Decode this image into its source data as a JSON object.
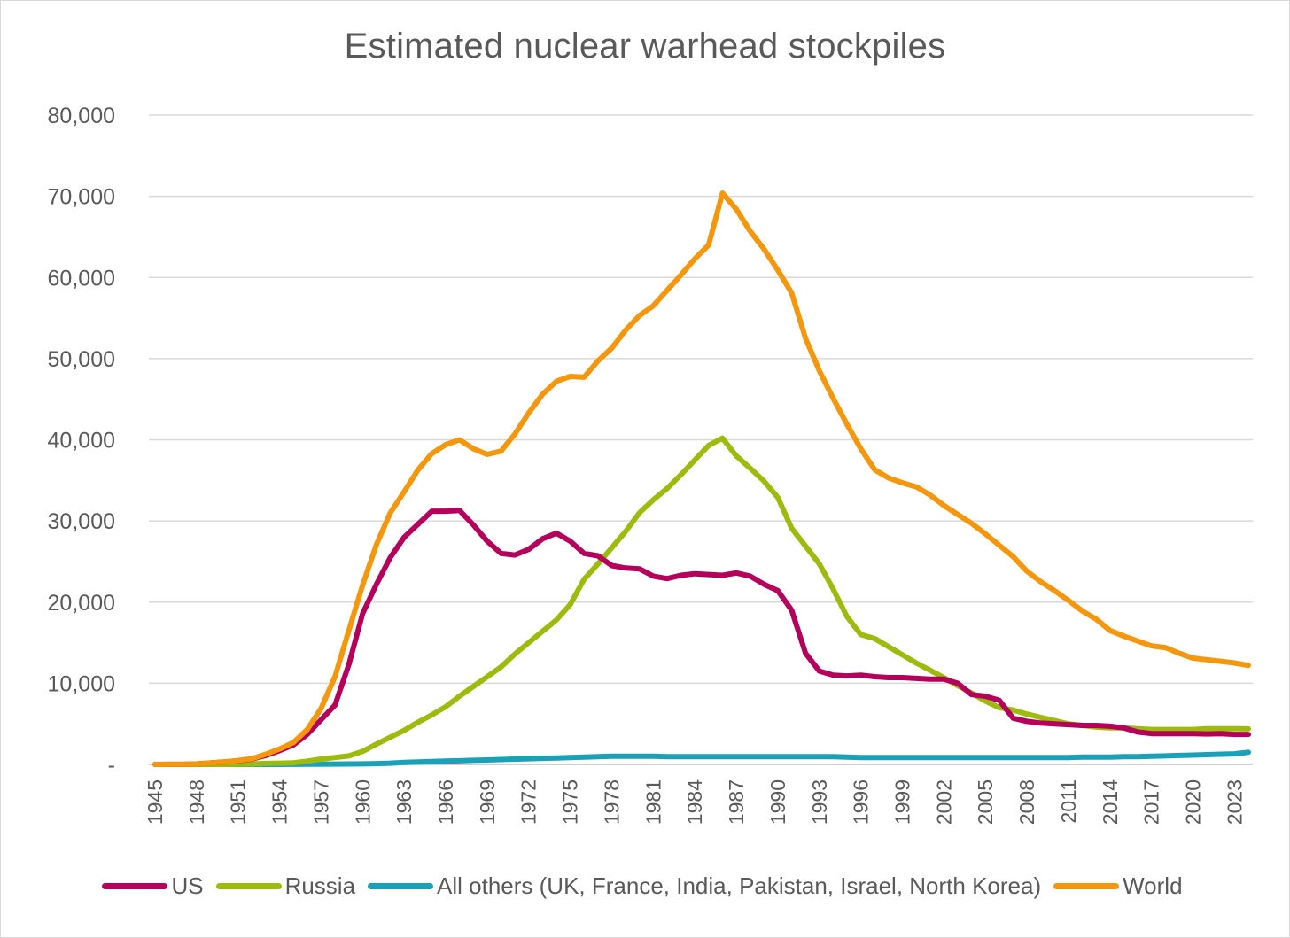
{
  "chart_data": {
    "type": "line",
    "title": "Estimated nuclear warhead stockpiles",
    "xlabel": "",
    "ylabel": "",
    "ylim": [
      0,
      80000
    ],
    "y_ticks": [
      {
        "value": 0,
        "label": "-"
      },
      {
        "value": 10000,
        "label": "10,000"
      },
      {
        "value": 20000,
        "label": "20,000"
      },
      {
        "value": 30000,
        "label": "30,000"
      },
      {
        "value": 40000,
        "label": "40,000"
      },
      {
        "value": 50000,
        "label": "50,000"
      },
      {
        "value": 60000,
        "label": "60,000"
      },
      {
        "value": 70000,
        "label": "70,000"
      },
      {
        "value": 80000,
        "label": "80,000"
      }
    ],
    "x_tick_labels": [
      "1945",
      "1948",
      "1951",
      "1954",
      "1957",
      "1960",
      "1963",
      "1966",
      "1969",
      "1972",
      "1975",
      "1978",
      "1981",
      "1984",
      "1987",
      "1990",
      "1993",
      "1996",
      "1999",
      "2002",
      "2005",
      "2008",
      "2011",
      "2014",
      "2017",
      "2020",
      "2023"
    ],
    "grid": true,
    "legend_position": "bottom",
    "x": [
      1945,
      1946,
      1947,
      1948,
      1949,
      1950,
      1951,
      1952,
      1953,
      1954,
      1955,
      1956,
      1957,
      1958,
      1959,
      1960,
      1961,
      1962,
      1963,
      1964,
      1965,
      1966,
      1967,
      1968,
      1969,
      1970,
      1971,
      1972,
      1973,
      1974,
      1975,
      1976,
      1977,
      1978,
      1979,
      1980,
      1981,
      1982,
      1983,
      1984,
      1985,
      1986,
      1987,
      1988,
      1989,
      1990,
      1991,
      1992,
      1993,
      1994,
      1995,
      1996,
      1997,
      1998,
      1999,
      2000,
      2001,
      2002,
      2003,
      2004,
      2005,
      2006,
      2007,
      2008,
      2009,
      2010,
      2011,
      2012,
      2013,
      2014,
      2015,
      2016,
      2017,
      2018,
      2019,
      2020,
      2021,
      2022,
      2023,
      2024
    ],
    "series": [
      {
        "name": "US",
        "color": "#b5005b",
        "values": [
          2,
          9,
          13,
          50,
          170,
          300,
          450,
          650,
          1100,
          1700,
          2400,
          3700,
          5500,
          7300,
          12300,
          18600,
          22200,
          25500,
          28000,
          29600,
          31200,
          31200,
          31300,
          29500,
          27500,
          26000,
          25800,
          26500,
          27800,
          28500,
          27500,
          26000,
          25700,
          24500,
          24200,
          24100,
          23200,
          22900,
          23300,
          23500,
          23400,
          23300,
          23600,
          23200,
          22200,
          21400,
          19000,
          13700,
          11500,
          11000,
          10900,
          11000,
          10800,
          10700,
          10700,
          10600,
          10500,
          10500,
          10000,
          8600,
          8400,
          7900,
          5700,
          5300,
          5100,
          5000,
          4900,
          4800,
          4800,
          4700,
          4500,
          4000,
          3800,
          3800,
          3800,
          3800,
          3750,
          3800,
          3700,
          3700
        ]
      },
      {
        "name": "Russia",
        "color": "#9cbb0d",
        "values": [
          0,
          0,
          0,
          0,
          1,
          5,
          25,
          50,
          120,
          150,
          200,
          400,
          650,
          850,
          1050,
          1600,
          2500,
          3350,
          4200,
          5200,
          6100,
          7100,
          8400,
          9600,
          10800,
          12000,
          13600,
          15000,
          16400,
          17800,
          19700,
          22800,
          24700,
          26700,
          28700,
          31000,
          32600,
          34000,
          35700,
          37500,
          39300,
          40200,
          38000,
          36500,
          34900,
          32900,
          29100,
          26900,
          24700,
          21600,
          18200,
          16000,
          15500,
          14500,
          13500,
          12500,
          11600,
          10700,
          9700,
          8800,
          7800,
          7000,
          6700,
          6200,
          5800,
          5400,
          5000,
          4800,
          4600,
          4500,
          4500,
          4400,
          4300,
          4300,
          4300,
          4300,
          4400,
          4400,
          4400,
          4380
        ]
      },
      {
        "name": "All others (UK, France, India, Pakistan, Israel, North Korea)",
        "color": "#1aa1b8",
        "values": [
          0,
          0,
          0,
          0,
          0,
          0,
          0,
          0,
          2,
          5,
          10,
          20,
          30,
          40,
          50,
          70,
          100,
          150,
          250,
          300,
          350,
          400,
          450,
          500,
          550,
          600,
          650,
          700,
          750,
          800,
          850,
          900,
          950,
          1000,
          1000,
          1000,
          1000,
          950,
          950,
          950,
          950,
          950,
          950,
          950,
          950,
          950,
          950,
          950,
          950,
          950,
          900,
          850,
          850,
          850,
          850,
          850,
          850,
          850,
          850,
          850,
          850,
          850,
          850,
          850,
          850,
          850,
          850,
          900,
          900,
          900,
          950,
          950,
          1000,
          1050,
          1100,
          1150,
          1200,
          1250,
          1300,
          1500
        ]
      },
      {
        "name": "World",
        "color": "#f4970d",
        "values": [
          2,
          9,
          13,
          50,
          170,
          300,
          475,
          700,
          1250,
          1900,
          2700,
          4300,
          6900,
          10800,
          16500,
          22100,
          27100,
          31000,
          33600,
          36300,
          38300,
          39400,
          40000,
          38900,
          38200,
          38600,
          40700,
          43300,
          45600,
          47200,
          47800,
          47700,
          49700,
          51300,
          53500,
          55300,
          56500,
          58400,
          60300,
          62300,
          64000,
          70400,
          68400,
          65700,
          63500,
          60900,
          58100,
          52500,
          48500,
          45100,
          41900,
          38900,
          36300,
          35300,
          34700,
          34200,
          33200,
          31900,
          30800,
          29700,
          28400,
          27000,
          25600,
          23800,
          22500,
          21400,
          20200,
          18900,
          17900,
          16500,
          15800,
          15200,
          14600,
          14400,
          13700,
          13100,
          12900,
          12700,
          12500,
          12200
        ]
      }
    ]
  }
}
